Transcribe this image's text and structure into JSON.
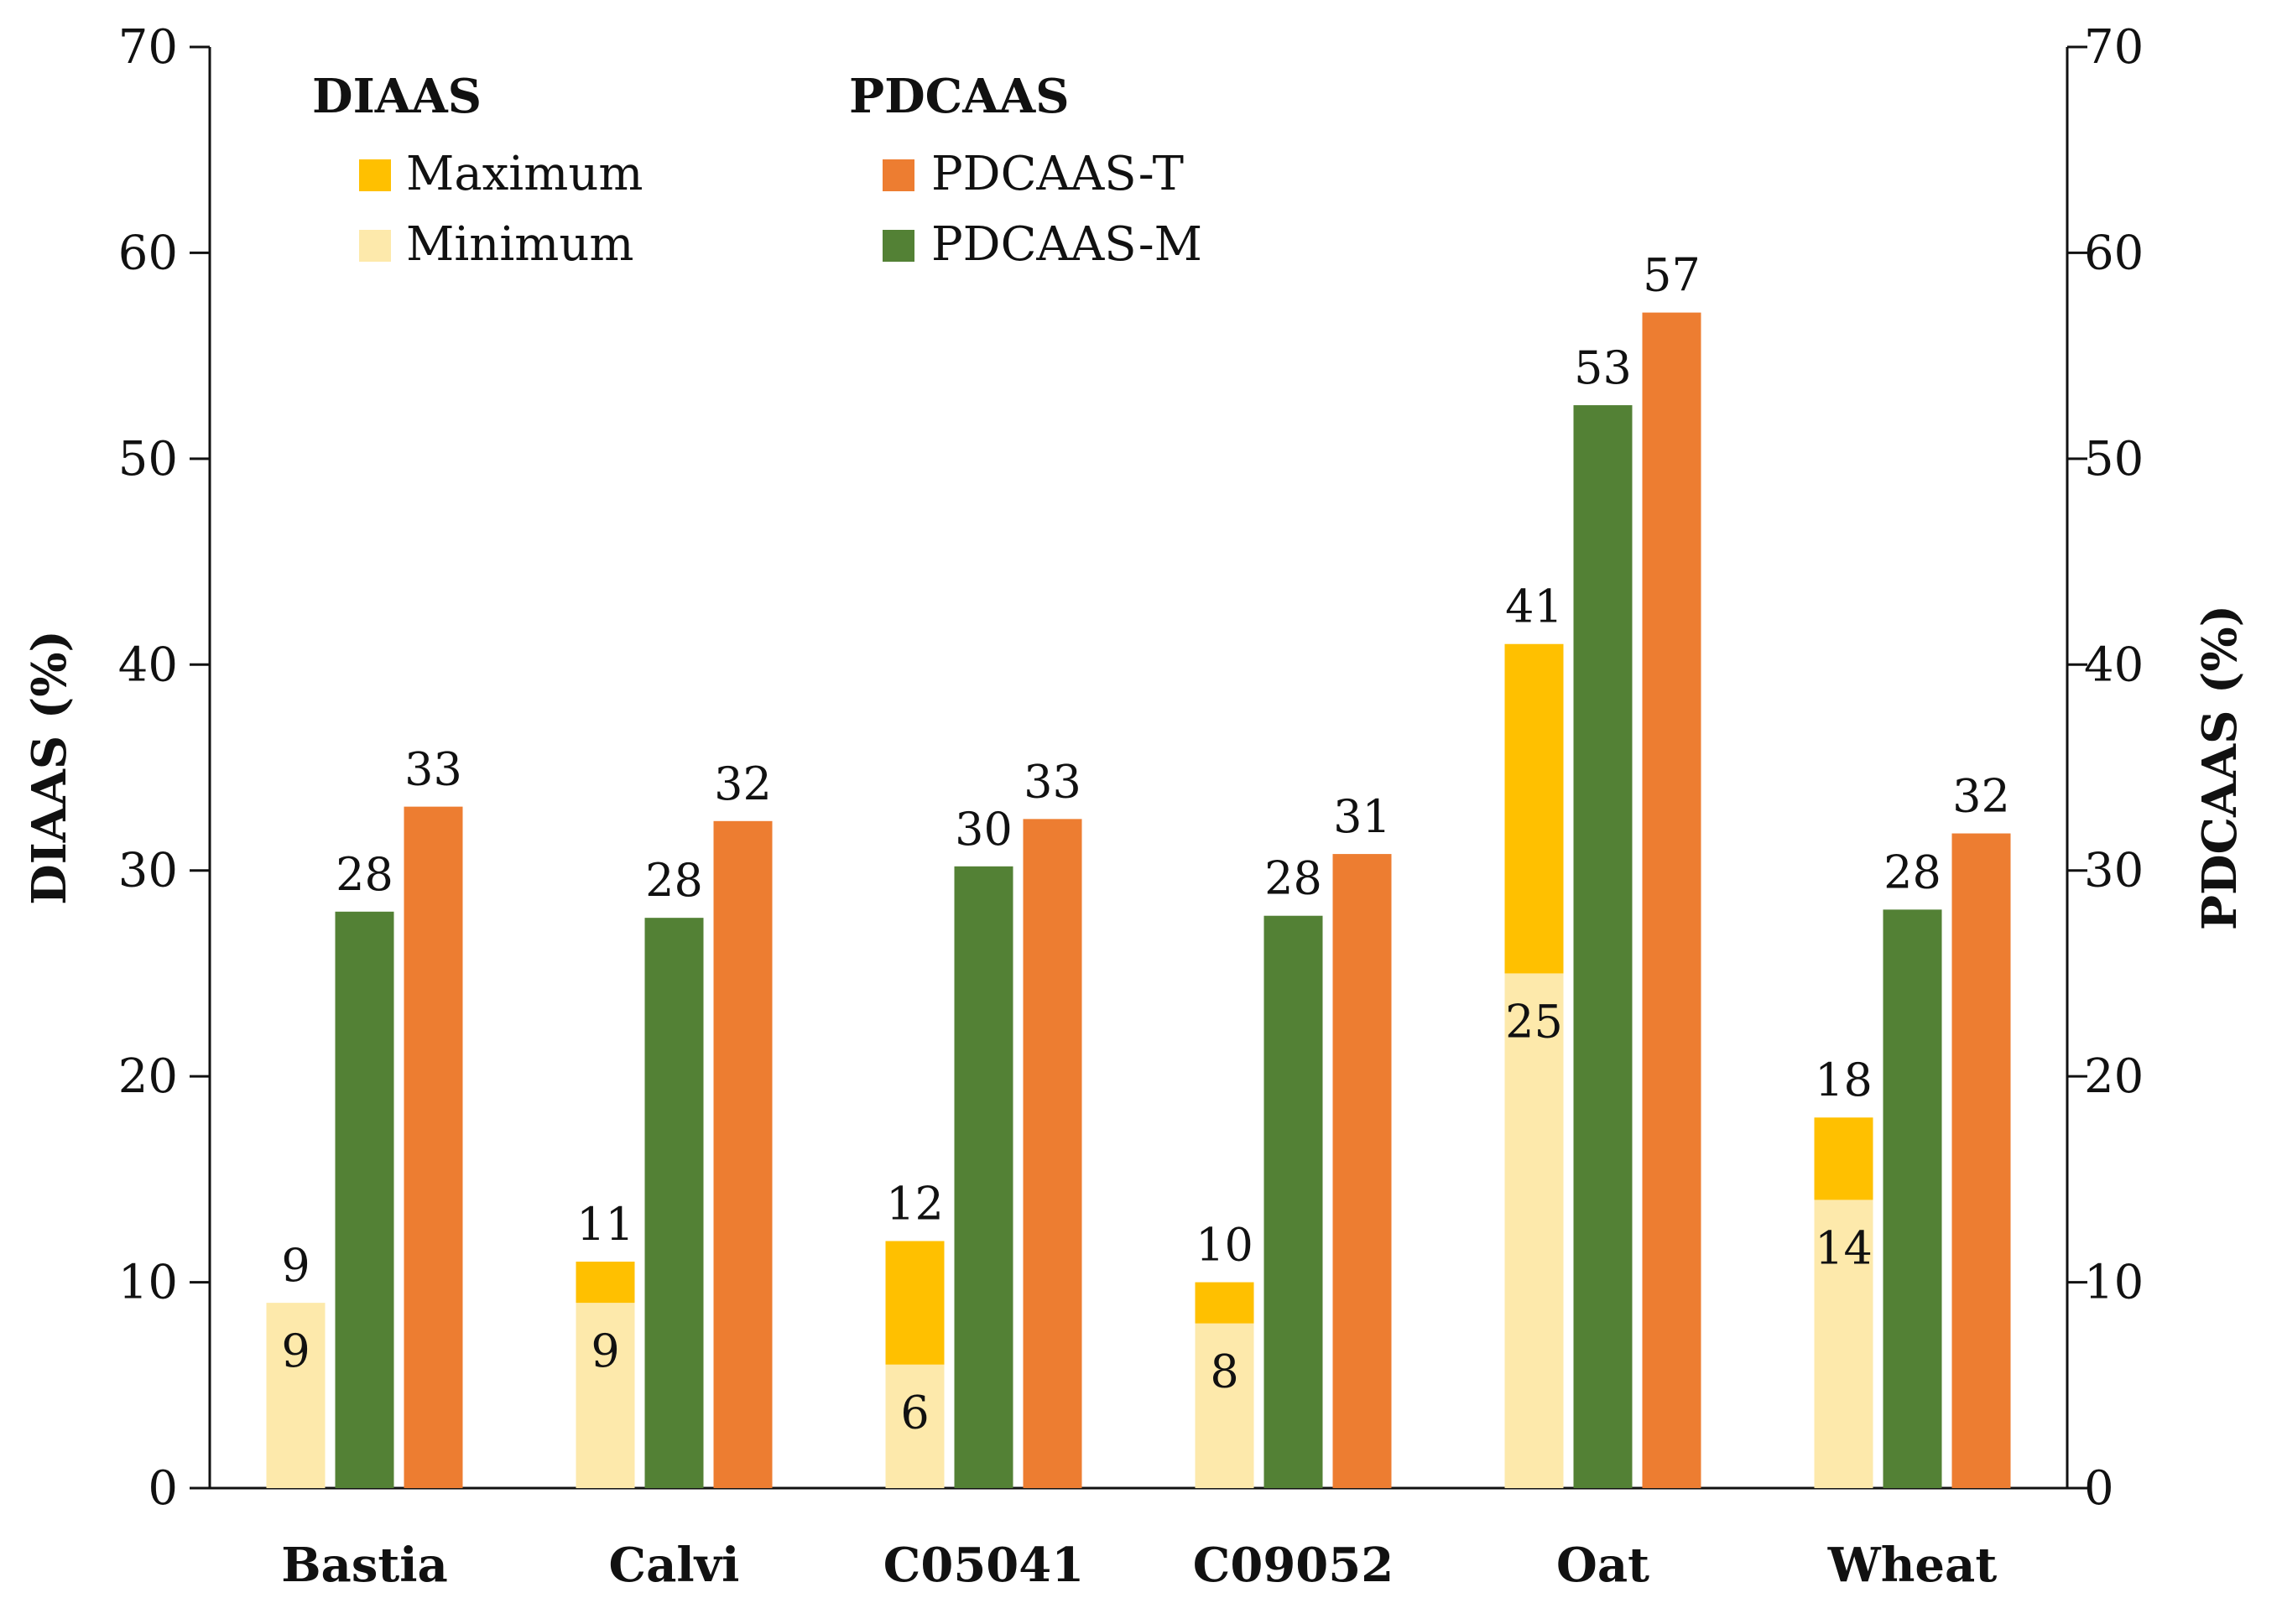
{
  "chart_data": {
    "type": "bar",
    "categories": [
      "Bastia",
      "Calvi",
      "C05041",
      "C09052",
      "Oat",
      "Wheat"
    ],
    "ylim": [
      0,
      70
    ],
    "y_ticks": [
      "0",
      "10",
      "20",
      "30",
      "40",
      "50",
      "60",
      "70"
    ],
    "y2_ticks": [
      "0",
      "10",
      "20",
      "30",
      "40",
      "50",
      "60",
      "70"
    ],
    "ylabel": "DIAAS (%)",
    "y2label": "PDCAAS (%)",
    "legend": {
      "diaas_title": "DIAAS",
      "pdcaas_title": "PDCAAS",
      "placement": "top-left"
    },
    "series": [
      {
        "name": "Minimum",
        "group": "DIAAS",
        "color": "#FDE9AB",
        "values": [
          9,
          9,
          6,
          8,
          25,
          14
        ],
        "labels": [
          "9",
          "9",
          "6",
          "8",
          "25",
          "14"
        ]
      },
      {
        "name": "Maximum",
        "group": "DIAAS",
        "color": "#FFC000",
        "values": [
          9,
          11,
          12,
          10,
          41,
          18
        ],
        "labels": [
          "9",
          "11",
          "12",
          "10",
          "41",
          "18"
        ]
      },
      {
        "name": "PDCAAS-M",
        "group": "PDCAAS",
        "color": "#538135",
        "values": [
          28,
          27.7,
          30.2,
          27.8,
          52.6,
          28.1
        ],
        "labels": [
          "28",
          "28",
          "30",
          "28",
          "53",
          "28"
        ]
      },
      {
        "name": "PDCAAS-T",
        "group": "PDCAAS",
        "color": "#ED7D31",
        "values": [
          33.1,
          32.4,
          32.5,
          30.8,
          57.1,
          31.8
        ],
        "labels": [
          "33",
          "32",
          "33",
          "31",
          "57",
          "32"
        ]
      }
    ]
  }
}
